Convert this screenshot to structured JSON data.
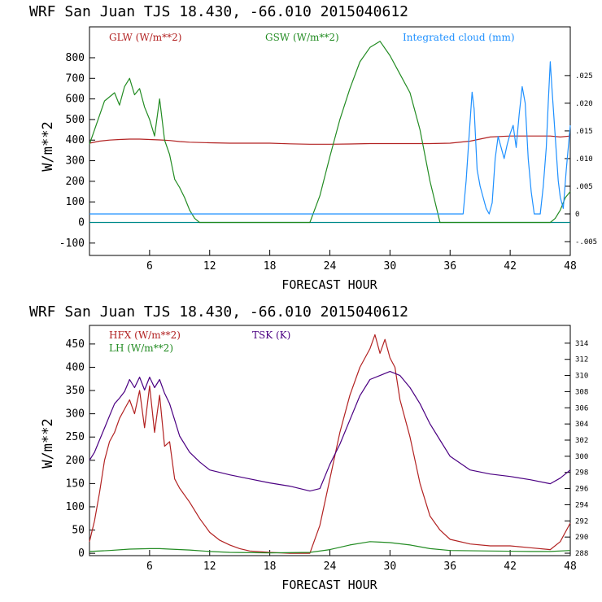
{
  "panels": [
    {
      "title": "WRF   San Juan TJS  18.430, -66.010  2015040612",
      "xlabel": "FORECAST HOUR",
      "ylabel": "W/m**2",
      "legend": [
        {
          "label": "GLW (W/m**2)",
          "color": "#b22222"
        },
        {
          "label": "GSW (W/m**2)",
          "color": "#228b22"
        },
        {
          "label": "Integrated cloud (mm)",
          "color": "#1e90ff"
        }
      ]
    },
    {
      "title": "WRF   San Juan TJS  18.430, -66.010  2015040612",
      "xlabel": "FORECAST HOUR",
      "ylabel": "W/m**2",
      "legend": [
        {
          "label": "HFX (W/m**2)",
          "color": "#b22222"
        },
        {
          "label": "LH  (W/m**2)",
          "color": "#228b22"
        },
        {
          "label": "TSK (K)",
          "color": "#4b0082"
        }
      ]
    }
  ],
  "chart_data": [
    {
      "type": "line",
      "xlim": [
        0,
        48
      ],
      "ylim": [
        -160,
        950
      ],
      "y2lim": [
        -0.0075,
        0.0338
      ],
      "xticks": [
        6,
        12,
        18,
        24,
        30,
        36,
        42,
        48
      ],
      "yticks": [
        -100,
        0,
        100,
        200,
        300,
        400,
        500,
        600,
        700,
        800
      ],
      "y2ticks": [
        "-.005",
        "0",
        ".005",
        ".010",
        ".015",
        ".020",
        ".025"
      ],
      "y2tick_values": [
        -0.005,
        0,
        0.005,
        0.01,
        0.015,
        0.02,
        0.025
      ],
      "grid": false,
      "series": [
        {
          "name": "GLW (W/m**2)",
          "axis": "left",
          "color": "#b22222",
          "x": [
            0,
            1,
            2,
            3,
            4,
            5,
            6,
            7,
            8,
            9,
            10,
            12,
            14,
            16,
            18,
            20,
            22,
            24,
            26,
            28,
            30,
            32,
            34,
            36,
            38,
            40,
            42,
            44,
            46,
            47,
            48
          ],
          "y": [
            385,
            395,
            400,
            403,
            405,
            405,
            403,
            401,
            398,
            393,
            390,
            387,
            385,
            385,
            385,
            382,
            380,
            380,
            381,
            383,
            383,
            383,
            383,
            385,
            395,
            415,
            420,
            420,
            420,
            415,
            420
          ]
        },
        {
          "name": "GSW (W/m**2)",
          "axis": "left",
          "color": "#228b22",
          "x": [
            0,
            0.5,
            1,
            1.5,
            2,
            2.5,
            3,
            3.5,
            4,
            4.5,
            5,
            5.5,
            6,
            6.5,
            7,
            7.5,
            8,
            8.5,
            9,
            9.5,
            10,
            10.5,
            11,
            22,
            23,
            24,
            25,
            26,
            27,
            28,
            29,
            30,
            31,
            32,
            33,
            34,
            35,
            46,
            46.5,
            47,
            47.5,
            48
          ],
          "y": [
            380,
            450,
            520,
            590,
            610,
            630,
            570,
            660,
            700,
            620,
            650,
            560,
            500,
            420,
            600,
            400,
            330,
            210,
            170,
            120,
            60,
            20,
            0,
            0,
            130,
            320,
            500,
            650,
            780,
            850,
            880,
            810,
            720,
            630,
            450,
            200,
            0,
            0,
            20,
            60,
            120,
            150
          ]
        },
        {
          "name": "Integrated cloud (mm)",
          "axis": "right",
          "color": "#1e90ff",
          "x": [
            0,
            37.3,
            37.6,
            37.9,
            38.2,
            38.4,
            38.7,
            39.0,
            39.3,
            39.6,
            39.9,
            40.2,
            40.5,
            40.8,
            41.1,
            41.4,
            41.7,
            42.0,
            42.3,
            42.6,
            42.9,
            43.2,
            43.5,
            43.8,
            44.1,
            44.4,
            44.7,
            45.0,
            45.3,
            45.6,
            45.8,
            46.0,
            46.2,
            46.5,
            46.8,
            47.0,
            47.3,
            47.6,
            48.0
          ],
          "y": [
            0,
            0,
            0.006,
            0.014,
            0.022,
            0.019,
            0.008,
            0.005,
            0.003,
            0.001,
            0,
            0.002,
            0.01,
            0.014,
            0.012,
            0.01,
            0.0125,
            0.0145,
            0.016,
            0.012,
            0.018,
            0.023,
            0.02,
            0.01,
            0.004,
            0,
            0,
            0,
            0.005,
            0.012,
            0.02,
            0.0275,
            0.022,
            0.014,
            0.006,
            0.003,
            0.001,
            0.008,
            0.016
          ]
        }
      ]
    },
    {
      "type": "line",
      "xlim": [
        0,
        48
      ],
      "ylim": [
        -5,
        490
      ],
      "y2lim": [
        287.7,
        316.2
      ],
      "xticks": [
        6,
        12,
        18,
        24,
        30,
        36,
        42,
        48
      ],
      "yticks": [
        0,
        50,
        100,
        150,
        200,
        250,
        300,
        350,
        400,
        450
      ],
      "y2ticks": [
        288,
        290,
        292,
        294,
        296,
        298,
        300,
        302,
        304,
        306,
        308,
        310,
        312,
        314
      ],
      "grid": false,
      "series": [
        {
          "name": "HFX (W/m**2)",
          "axis": "left",
          "color": "#b22222",
          "x": [
            0,
            0.5,
            1,
            1.5,
            2,
            2.5,
            3,
            3.5,
            4,
            4.5,
            5,
            5.5,
            6,
            6.5,
            7,
            7.5,
            8,
            8.5,
            9,
            10,
            11,
            12,
            13,
            14,
            15,
            16,
            18,
            20,
            22,
            23,
            24,
            25,
            26,
            27,
            28,
            28.5,
            29,
            29.5,
            30,
            30.5,
            31,
            32,
            33,
            34,
            35,
            36,
            38,
            40,
            42,
            44,
            46,
            47,
            48
          ],
          "y": [
            25,
            70,
            130,
            200,
            240,
            260,
            290,
            310,
            330,
            300,
            350,
            270,
            360,
            260,
            340,
            230,
            240,
            160,
            140,
            110,
            75,
            45,
            28,
            18,
            10,
            5,
            2,
            0,
            0,
            60,
            160,
            260,
            340,
            400,
            440,
            470,
            430,
            460,
            420,
            400,
            330,
            250,
            150,
            80,
            50,
            30,
            20,
            16,
            16,
            12,
            8,
            25,
            65
          ]
        },
        {
          "name": "LH  (W/m**2)",
          "axis": "left",
          "color": "#228b22",
          "x": [
            0,
            2,
            4,
            6,
            7,
            8,
            10,
            12,
            14,
            18,
            22,
            24,
            26,
            28,
            29,
            30,
            32,
            34,
            36,
            40,
            44,
            46,
            48
          ],
          "y": [
            4,
            6,
            9,
            10,
            10,
            9,
            7,
            4,
            2,
            1,
            2,
            8,
            18,
            25,
            24,
            23,
            18,
            10,
            6,
            5,
            4,
            4,
            6
          ]
        },
        {
          "name": "TSK (K)",
          "axis": "right",
          "color": "#4b0082",
          "x": [
            0,
            0.5,
            1,
            1.5,
            2,
            2.5,
            3,
            3.5,
            4,
            4.5,
            5,
            5.5,
            6,
            6.5,
            7,
            7.5,
            8,
            8.5,
            9,
            10,
            11,
            12,
            14,
            16,
            18,
            20,
            22,
            23,
            24,
            25,
            26,
            27,
            28,
            29,
            30,
            31,
            32,
            33,
            34,
            35,
            36,
            38,
            40,
            42,
            44,
            46,
            47,
            48
          ],
          "y": [
            299.5,
            300.5,
            302.0,
            303.5,
            305.0,
            306.5,
            307.2,
            308.0,
            309.5,
            308.5,
            309.8,
            308.2,
            309.8,
            308.5,
            309.5,
            307.8,
            306.5,
            304.5,
            302.5,
            300.5,
            299.3,
            298.3,
            297.7,
            297.2,
            296.7,
            296.3,
            295.7,
            296.0,
            299.0,
            301.5,
            304.5,
            307.5,
            309.5,
            310.0,
            310.5,
            310.0,
            308.5,
            306.5,
            304.0,
            302.0,
            300.0,
            298.3,
            297.8,
            297.5,
            297.1,
            296.6,
            297.3,
            298.3
          ]
        }
      ]
    }
  ]
}
